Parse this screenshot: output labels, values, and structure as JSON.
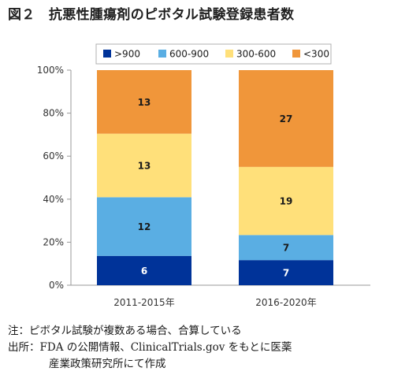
{
  "figure_title": "図２　抗悪性腫瘍剤のピボタル試験登録患者数",
  "notes": {
    "note": "注：ピボタル試験が複数ある場合、合算している",
    "source_line1": "出所：FDA の公開情報、ClinicalTrials.gov をもとに医薬",
    "source_line2": "産業政策研究所にて作成"
  },
  "chart_data": {
    "type": "bar",
    "stacked": true,
    "percent_stacked": true,
    "categories": [
      "2011-2015年",
      "2016-2020年"
    ],
    "series": [
      {
        "name": ">900",
        "values": [
          6,
          7
        ],
        "color": "#003399",
        "label_color": "#ffffff"
      },
      {
        "name": "600-900",
        "values": [
          12,
          7
        ],
        "color": "#5aaee3",
        "label_color": "#1a1a1a"
      },
      {
        "name": "300-600",
        "values": [
          13,
          19
        ],
        "color": "#ffe07a",
        "label_color": "#1a1a1a"
      },
      {
        "name": "<300",
        "values": [
          13,
          27
        ],
        "color": "#f0963a",
        "label_color": "#1a1a1a"
      }
    ],
    "yticks": [
      "0%",
      "20%",
      "40%",
      "60%",
      "80%",
      "100%"
    ],
    "ylim": [
      0,
      100
    ],
    "grid": false,
    "legend": "top"
  }
}
